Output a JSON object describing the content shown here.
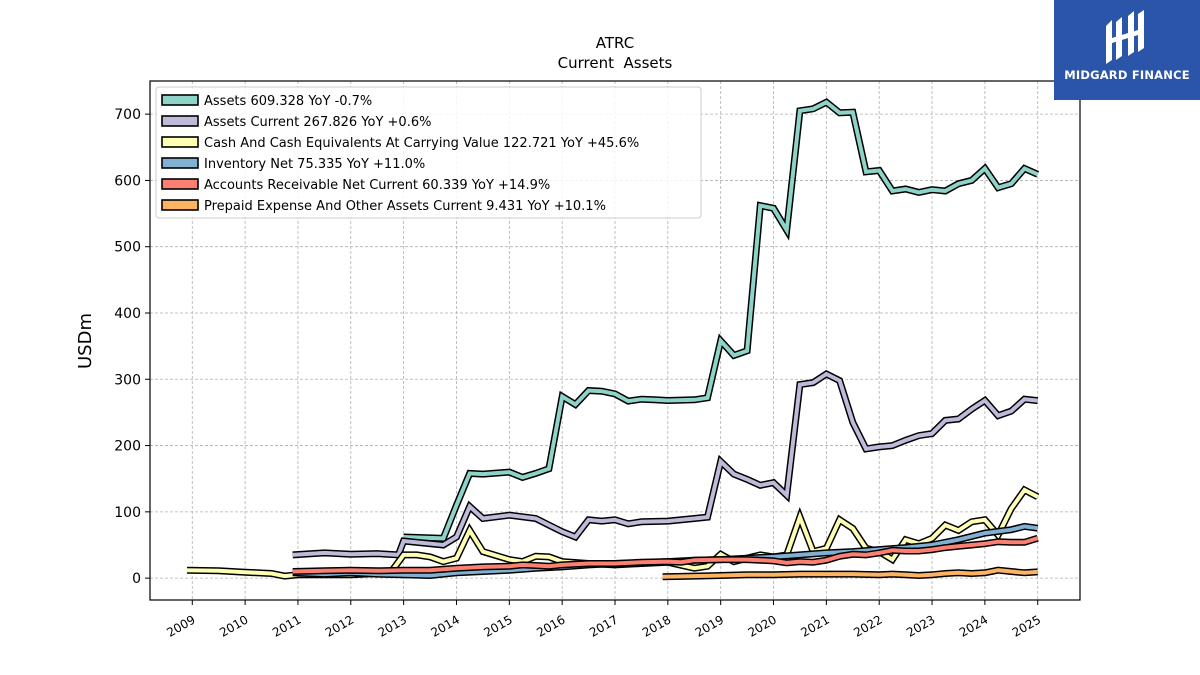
{
  "chart_data": {
    "type": "line",
    "title": "ATRC",
    "subtitle": "Current  Assets",
    "xlabel": "",
    "ylabel": "USDm",
    "xlim": [
      2008.2,
      2025.8
    ],
    "ylim": [
      -33,
      750
    ],
    "x_ticks": [
      "2009",
      "2010",
      "2011",
      "2012",
      "2013",
      "2014",
      "2015",
      "2016",
      "2017",
      "2018",
      "2019",
      "2020",
      "2021",
      "2022",
      "2023",
      "2024",
      "2025"
    ],
    "y_ticks": [
      0,
      100,
      200,
      300,
      400,
      500,
      600,
      700
    ],
    "grid": true,
    "legend_position": "top-left",
    "series": [
      {
        "name": "Assets  609.328 YoY -0.7%",
        "color": "#8dd3c7",
        "points": [
          [
            2013.0,
            62
          ],
          [
            2013.75,
            60
          ],
          [
            2014.0,
            110
          ],
          [
            2014.25,
            158
          ],
          [
            2014.5,
            157
          ],
          [
            2015.0,
            160
          ],
          [
            2015.25,
            152
          ],
          [
            2015.5,
            158
          ],
          [
            2015.75,
            165
          ],
          [
            2016.0,
            274
          ],
          [
            2016.25,
            262
          ],
          [
            2016.5,
            283
          ],
          [
            2016.75,
            282
          ],
          [
            2017.0,
            278
          ],
          [
            2017.25,
            267
          ],
          [
            2017.5,
            270
          ],
          [
            2017.75,
            269
          ],
          [
            2018.0,
            268
          ],
          [
            2018.5,
            269
          ],
          [
            2018.75,
            272
          ],
          [
            2019.0,
            358
          ],
          [
            2019.25,
            336
          ],
          [
            2019.5,
            343
          ],
          [
            2019.75,
            562
          ],
          [
            2020.0,
            558
          ],
          [
            2020.25,
            525
          ],
          [
            2020.5,
            705
          ],
          [
            2020.75,
            708
          ],
          [
            2021.0,
            718
          ],
          [
            2021.25,
            702
          ],
          [
            2021.5,
            703
          ],
          [
            2021.75,
            613
          ],
          [
            2022.0,
            615
          ],
          [
            2022.25,
            584
          ],
          [
            2022.5,
            587
          ],
          [
            2022.75,
            582
          ],
          [
            2023.0,
            586
          ],
          [
            2023.25,
            584
          ],
          [
            2023.5,
            595
          ],
          [
            2023.75,
            600
          ],
          [
            2024.0,
            618
          ],
          [
            2024.25,
            589
          ],
          [
            2024.5,
            595
          ],
          [
            2024.75,
            618
          ],
          [
            2025.0,
            609.3
          ]
        ]
      },
      {
        "name": "Assets Current  267.826 YoY +0.6%",
        "color": "#bebada",
        "points": [
          [
            2010.9,
            35
          ],
          [
            2011.5,
            38
          ],
          [
            2012.0,
            36
          ],
          [
            2012.5,
            37
          ],
          [
            2012.9,
            35
          ],
          [
            2013.0,
            56
          ],
          [
            2013.75,
            50
          ],
          [
            2014.0,
            62
          ],
          [
            2014.25,
            108
          ],
          [
            2014.5,
            90
          ],
          [
            2015.0,
            95
          ],
          [
            2015.5,
            90
          ],
          [
            2015.75,
            80
          ],
          [
            2016.0,
            70
          ],
          [
            2016.25,
            62
          ],
          [
            2016.5,
            88
          ],
          [
            2016.75,
            86
          ],
          [
            2017.0,
            88
          ],
          [
            2017.25,
            82
          ],
          [
            2017.5,
            85
          ],
          [
            2018.0,
            86
          ],
          [
            2018.5,
            90
          ],
          [
            2018.75,
            92
          ],
          [
            2019.0,
            176
          ],
          [
            2019.25,
            157
          ],
          [
            2019.5,
            149
          ],
          [
            2019.75,
            140
          ],
          [
            2020.0,
            144
          ],
          [
            2020.25,
            125
          ],
          [
            2020.5,
            292
          ],
          [
            2020.75,
            295
          ],
          [
            2021.0,
            308
          ],
          [
            2021.25,
            298
          ],
          [
            2021.5,
            235
          ],
          [
            2021.75,
            195
          ],
          [
            2022.0,
            198
          ],
          [
            2022.25,
            200
          ],
          [
            2022.5,
            208
          ],
          [
            2022.75,
            215
          ],
          [
            2023.0,
            218
          ],
          [
            2023.25,
            238
          ],
          [
            2023.5,
            240
          ],
          [
            2023.75,
            255
          ],
          [
            2024.0,
            268
          ],
          [
            2024.25,
            245
          ],
          [
            2024.5,
            252
          ],
          [
            2024.75,
            270
          ],
          [
            2025.0,
            267.8
          ]
        ]
      },
      {
        "name": "Cash And Cash Equivalents At Carrying Value  122.721 YoY +45.6%",
        "color": "#ffffb3",
        "points": [
          [
            2008.9,
            12
          ],
          [
            2009.5,
            11
          ],
          [
            2010.0,
            9
          ],
          [
            2010.5,
            7
          ],
          [
            2010.75,
            3
          ],
          [
            2011.0,
            5
          ],
          [
            2012.0,
            5
          ],
          [
            2012.75,
            8
          ],
          [
            2013.0,
            35
          ],
          [
            2013.25,
            35
          ],
          [
            2013.5,
            32
          ],
          [
            2013.75,
            25
          ],
          [
            2014.0,
            30
          ],
          [
            2014.25,
            72
          ],
          [
            2014.5,
            40
          ],
          [
            2015.0,
            28
          ],
          [
            2015.25,
            25
          ],
          [
            2015.5,
            33
          ],
          [
            2015.75,
            32
          ],
          [
            2016.0,
            25
          ],
          [
            2016.5,
            22
          ],
          [
            2017.0,
            20
          ],
          [
            2017.5,
            22
          ],
          [
            2018.0,
            24
          ],
          [
            2018.5,
            15
          ],
          [
            2018.75,
            18
          ],
          [
            2019.0,
            36
          ],
          [
            2019.25,
            25
          ],
          [
            2019.5,
            30
          ],
          [
            2019.75,
            35
          ],
          [
            2020.0,
            32
          ],
          [
            2020.25,
            35
          ],
          [
            2020.5,
            92
          ],
          [
            2020.75,
            40
          ],
          [
            2021.0,
            45
          ],
          [
            2021.25,
            88
          ],
          [
            2021.5,
            75
          ],
          [
            2021.75,
            45
          ],
          [
            2022.0,
            40
          ],
          [
            2022.25,
            28
          ],
          [
            2022.5,
            58
          ],
          [
            2022.75,
            52
          ],
          [
            2023.0,
            60
          ],
          [
            2023.25,
            80
          ],
          [
            2023.5,
            72
          ],
          [
            2023.75,
            85
          ],
          [
            2024.0,
            88
          ],
          [
            2024.25,
            65
          ],
          [
            2024.5,
            105
          ],
          [
            2024.75,
            133
          ],
          [
            2025.0,
            122.7
          ]
        ]
      },
      {
        "name": "Inventory Net  75.335 YoY +11.0%",
        "color": "#80b1d3",
        "points": [
          [
            2010.9,
            8
          ],
          [
            2011.5,
            6
          ],
          [
            2012.0,
            8
          ],
          [
            2012.5,
            6
          ],
          [
            2013.0,
            5
          ],
          [
            2013.5,
            4
          ],
          [
            2014.0,
            8
          ],
          [
            2014.5,
            10
          ],
          [
            2015.0,
            12
          ],
          [
            2015.5,
            15
          ],
          [
            2016.0,
            17
          ],
          [
            2016.5,
            20
          ],
          [
            2017.0,
            22
          ],
          [
            2017.5,
            23
          ],
          [
            2018.0,
            25
          ],
          [
            2018.5,
            27
          ],
          [
            2019.0,
            28
          ],
          [
            2019.5,
            30
          ],
          [
            2020.0,
            32
          ],
          [
            2020.5,
            35
          ],
          [
            2021.0,
            38
          ],
          [
            2021.5,
            40
          ],
          [
            2022.0,
            43
          ],
          [
            2022.5,
            46
          ],
          [
            2023.0,
            50
          ],
          [
            2023.5,
            58
          ],
          [
            2024.0,
            68
          ],
          [
            2024.5,
            73
          ],
          [
            2024.75,
            78
          ],
          [
            2025.0,
            75.3
          ]
        ]
      },
      {
        "name": "Accounts Receivable Net Current  60.339 YoY +14.9%",
        "color": "#fb8072",
        "points": [
          [
            2010.9,
            10
          ],
          [
            2011.5,
            11
          ],
          [
            2012.0,
            12
          ],
          [
            2012.5,
            11
          ],
          [
            2013.0,
            12
          ],
          [
            2013.5,
            12
          ],
          [
            2014.0,
            15
          ],
          [
            2014.5,
            17
          ],
          [
            2015.0,
            18
          ],
          [
            2015.25,
            20
          ],
          [
            2015.5,
            19
          ],
          [
            2015.75,
            18
          ],
          [
            2016.0,
            20
          ],
          [
            2016.5,
            22
          ],
          [
            2017.0,
            22
          ],
          [
            2017.5,
            24
          ],
          [
            2018.0,
            25
          ],
          [
            2018.25,
            24
          ],
          [
            2018.5,
            27
          ],
          [
            2019.0,
            28
          ],
          [
            2019.5,
            28
          ],
          [
            2019.75,
            27
          ],
          [
            2020.0,
            26
          ],
          [
            2020.25,
            23
          ],
          [
            2020.5,
            25
          ],
          [
            2020.75,
            24
          ],
          [
            2021.0,
            27
          ],
          [
            2021.25,
            33
          ],
          [
            2021.5,
            36
          ],
          [
            2021.75,
            35
          ],
          [
            2022.0,
            38
          ],
          [
            2022.25,
            42
          ],
          [
            2022.5,
            41
          ],
          [
            2022.75,
            41
          ],
          [
            2023.0,
            43
          ],
          [
            2023.25,
            46
          ],
          [
            2023.5,
            48
          ],
          [
            2023.75,
            50
          ],
          [
            2024.0,
            52
          ],
          [
            2024.25,
            55
          ],
          [
            2024.5,
            54
          ],
          [
            2024.75,
            54
          ],
          [
            2025.0,
            60.3
          ]
        ]
      },
      {
        "name": "Prepaid Expense And Other Assets Current  9.431 YoY +10.1%",
        "color": "#fdb462",
        "points": [
          [
            2017.9,
            2
          ],
          [
            2018.5,
            3
          ],
          [
            2019.0,
            4
          ],
          [
            2019.5,
            5
          ],
          [
            2020.0,
            5
          ],
          [
            2020.5,
            6
          ],
          [
            2021.0,
            6
          ],
          [
            2021.5,
            6
          ],
          [
            2022.0,
            5
          ],
          [
            2022.25,
            6
          ],
          [
            2022.5,
            5
          ],
          [
            2022.75,
            4
          ],
          [
            2023.0,
            5
          ],
          [
            2023.25,
            7
          ],
          [
            2023.5,
            8
          ],
          [
            2023.75,
            7
          ],
          [
            2024.0,
            8
          ],
          [
            2024.25,
            12
          ],
          [
            2024.5,
            10
          ],
          [
            2024.75,
            8
          ],
          [
            2025.0,
            9.4
          ]
        ]
      }
    ]
  },
  "logo": {
    "text": "MIDGARD FINANCE",
    "background": "#2a55a8"
  }
}
